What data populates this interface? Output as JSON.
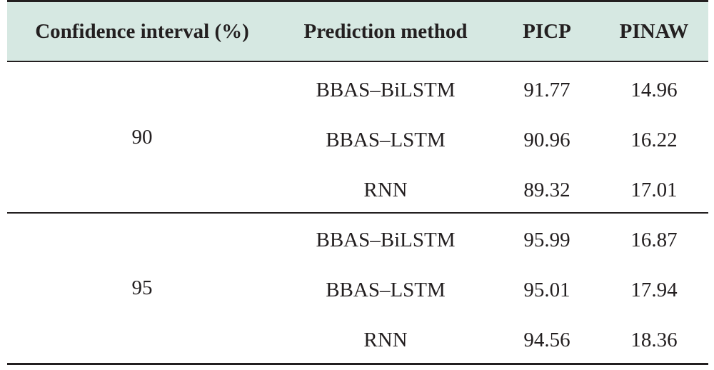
{
  "table": {
    "headers": {
      "confidence_interval": "Confidence interval (%)",
      "prediction_method": "Prediction method",
      "picp": "PICP",
      "pinaw": "PINAW"
    },
    "groups": [
      {
        "confidence": "90",
        "rows": [
          {
            "method": "BBAS–BiLSTM",
            "picp": "91.77",
            "pinaw": "14.96"
          },
          {
            "method": "BBAS–LSTM",
            "picp": "90.96",
            "pinaw": "16.22"
          },
          {
            "method": "RNN",
            "picp": "89.32",
            "pinaw": "17.01"
          }
        ]
      },
      {
        "confidence": "95",
        "rows": [
          {
            "method": "BBAS–BiLSTM",
            "picp": "95.99",
            "pinaw": "16.87"
          },
          {
            "method": "BBAS–LSTM",
            "picp": "95.01",
            "pinaw": "17.94"
          },
          {
            "method": "RNN",
            "picp": "94.56",
            "pinaw": "18.36"
          }
        ]
      }
    ]
  }
}
